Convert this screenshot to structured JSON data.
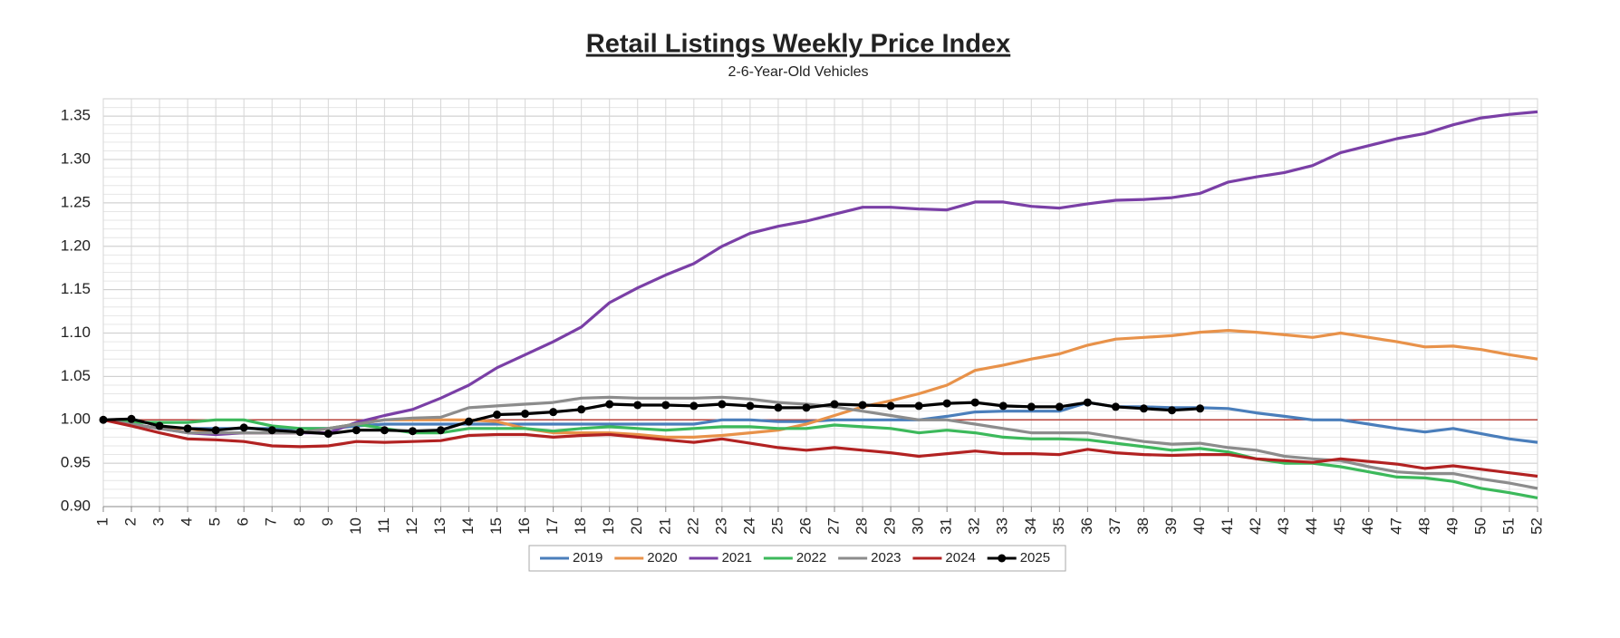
{
  "chart_data": {
    "type": "line",
    "title": "Retail Listings Weekly Price Index",
    "subtitle": "2-6-Year-Old Vehicles",
    "x": [
      1,
      2,
      3,
      4,
      5,
      6,
      7,
      8,
      9,
      10,
      11,
      12,
      13,
      14,
      15,
      16,
      17,
      18,
      19,
      20,
      21,
      22,
      23,
      24,
      25,
      26,
      27,
      28,
      29,
      30,
      31,
      32,
      33,
      34,
      35,
      36,
      37,
      38,
      39,
      40,
      41,
      42,
      43,
      44,
      45,
      46,
      47,
      48,
      49,
      50,
      51,
      52
    ],
    "xlim": [
      1,
      52
    ],
    "ylim": [
      0.9,
      1.37
    ],
    "yticks": [
      {
        "value": 0.9,
        "label": "0.90"
      },
      0.95,
      {
        "value": 1.0,
        "label": "1.00"
      },
      1.05,
      {
        "value": 1.1,
        "label": "1.10"
      },
      1.15,
      {
        "value": 1.2,
        "label": "1.20"
      },
      1.25,
      {
        "value": 1.3,
        "label": "1.30"
      },
      1.35
    ],
    "grid": true,
    "reference_line": {
      "value": 1.0,
      "color": "#b8413a"
    },
    "legend": "bottom",
    "series": [
      {
        "name": "2019",
        "color": "#4a7ebb",
        "values": [
          1.0,
          0.995,
          0.99,
          0.99,
          0.99,
          0.99,
          0.99,
          0.99,
          0.99,
          0.993,
          0.995,
          0.995,
          0.995,
          0.995,
          0.995,
          0.995,
          0.995,
          0.995,
          0.995,
          0.995,
          0.995,
          0.995,
          1.0,
          1.0,
          0.998,
          0.998,
          1.0,
          1.0,
          1.0,
          1.0,
          1.004,
          1.009,
          1.01,
          1.01,
          1.01,
          1.02,
          1.015,
          1.015,
          1.014,
          1.014,
          1.013,
          1.008,
          1.004,
          1.0,
          1.0,
          0.995,
          0.99,
          0.986,
          0.99,
          0.984,
          0.978,
          0.974
        ]
      },
      {
        "name": "2020",
        "color": "#e8924a",
        "values": [
          1.0,
          0.995,
          0.99,
          0.99,
          0.985,
          0.985,
          0.985,
          0.985,
          0.99,
          0.995,
          1.0,
          1.0,
          1.0,
          1.0,
          0.998,
          0.99,
          0.985,
          0.985,
          0.985,
          0.983,
          0.98,
          0.98,
          0.982,
          0.985,
          0.988,
          0.995,
          1.005,
          1.015,
          1.022,
          1.03,
          1.04,
          1.057,
          1.063,
          1.07,
          1.076,
          1.086,
          1.093,
          1.095,
          1.097,
          1.101,
          1.103,
          1.101,
          1.098,
          1.095,
          1.1,
          1.095,
          1.09,
          1.084,
          1.085,
          1.081,
          1.075,
          1.07
        ]
      },
      {
        "name": "2021",
        "color": "#7a3fa6",
        "values": [
          1.0,
          0.995,
          0.99,
          0.985,
          0.983,
          0.985,
          0.985,
          0.985,
          0.985,
          0.997,
          1.005,
          1.012,
          1.025,
          1.04,
          1.06,
          1.075,
          1.09,
          1.107,
          1.135,
          1.152,
          1.167,
          1.18,
          1.2,
          1.215,
          1.223,
          1.229,
          1.237,
          1.245,
          1.245,
          1.243,
          1.242,
          1.251,
          1.251,
          1.246,
          1.244,
          1.249,
          1.253,
          1.254,
          1.256,
          1.261,
          1.274,
          1.28,
          1.285,
          1.293,
          1.308,
          1.316,
          1.324,
          1.33,
          1.34,
          1.348,
          1.352,
          1.355
        ]
      },
      {
        "name": "2022",
        "color": "#3cb95b",
        "values": [
          1.0,
          0.997,
          0.997,
          0.997,
          1.0,
          1.0,
          0.993,
          0.99,
          0.99,
          0.995,
          0.99,
          0.985,
          0.985,
          0.99,
          0.99,
          0.99,
          0.987,
          0.99,
          0.992,
          0.99,
          0.988,
          0.99,
          0.992,
          0.992,
          0.99,
          0.99,
          0.994,
          0.992,
          0.99,
          0.985,
          0.988,
          0.985,
          0.98,
          0.978,
          0.978,
          0.977,
          0.973,
          0.969,
          0.965,
          0.967,
          0.963,
          0.955,
          0.95,
          0.95,
          0.946,
          0.94,
          0.934,
          0.933,
          0.929,
          0.921,
          0.916,
          0.91
        ]
      },
      {
        "name": "2023",
        "color": "#8c8c8c",
        "values": [
          1.0,
          0.995,
          0.99,
          0.985,
          0.985,
          0.985,
          0.985,
          0.985,
          0.99,
          0.995,
          1.0,
          1.002,
          1.003,
          1.014,
          1.016,
          1.018,
          1.02,
          1.025,
          1.026,
          1.025,
          1.025,
          1.025,
          1.026,
          1.024,
          1.02,
          1.018,
          1.015,
          1.01,
          1.005,
          1.0,
          1.0,
          0.995,
          0.99,
          0.985,
          0.985,
          0.985,
          0.98,
          0.975,
          0.972,
          0.973,
          0.968,
          0.965,
          0.958,
          0.955,
          0.953,
          0.946,
          0.94,
          0.938,
          0.938,
          0.932,
          0.927,
          0.921
        ]
      },
      {
        "name": "2024",
        "color": "#b22222",
        "values": [
          1.0,
          0.993,
          0.985,
          0.978,
          0.977,
          0.975,
          0.97,
          0.969,
          0.97,
          0.975,
          0.974,
          0.975,
          0.976,
          0.982,
          0.983,
          0.983,
          0.98,
          0.982,
          0.983,
          0.98,
          0.977,
          0.974,
          0.978,
          0.973,
          0.968,
          0.965,
          0.968,
          0.965,
          0.962,
          0.958,
          0.961,
          0.964,
          0.961,
          0.961,
          0.96,
          0.966,
          0.962,
          0.96,
          0.959,
          0.96,
          0.96,
          0.955,
          0.953,
          0.951,
          0.955,
          0.952,
          0.949,
          0.944,
          0.947,
          0.943,
          0.939,
          0.935
        ]
      },
      {
        "name": "2025",
        "color": "#000000",
        "markers": true,
        "values": [
          1.0,
          1.001,
          0.993,
          0.99,
          0.988,
          0.991,
          0.988,
          0.986,
          0.984,
          0.988,
          0.988,
          0.987,
          0.988,
          0.998,
          1.006,
          1.007,
          1.009,
          1.012,
          1.018,
          1.017,
          1.017,
          1.016,
          1.018,
          1.016,
          1.014,
          1.014,
          1.018,
          1.017,
          1.016,
          1.016,
          1.019,
          1.02,
          1.016,
          1.015,
          1.015,
          1.02,
          1.015,
          1.013,
          1.011,
          1.013,
          null,
          null,
          null,
          null,
          null,
          null,
          null,
          null,
          null,
          null,
          null,
          null
        ]
      }
    ]
  }
}
